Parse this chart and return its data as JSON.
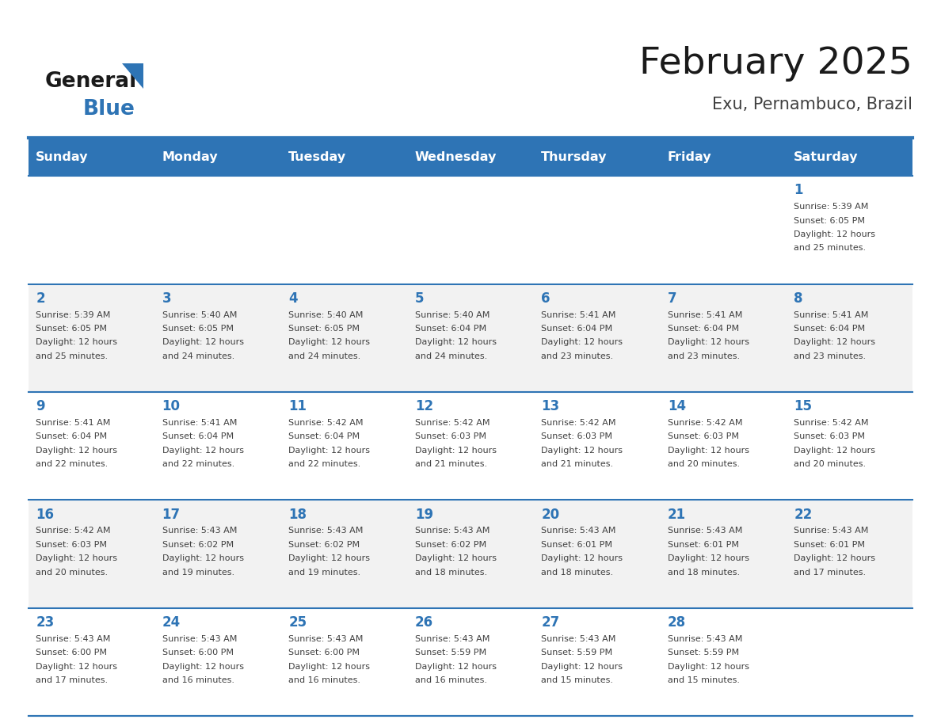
{
  "title": "February 2025",
  "subtitle": "Exu, Pernambuco, Brazil",
  "days_of_week": [
    "Sunday",
    "Monday",
    "Tuesday",
    "Wednesday",
    "Thursday",
    "Friday",
    "Saturday"
  ],
  "header_bg": "#2E74B5",
  "header_text_color": "#FFFFFF",
  "cell_bg_even": "#FFFFFF",
  "cell_bg_odd": "#F2F2F2",
  "day_number_color": "#2E74B5",
  "info_text_color": "#404040",
  "grid_line_color": "#2E74B5",
  "title_color": "#1a1a1a",
  "subtitle_color": "#404040",
  "logo_text1": "General",
  "logo_text2": "Blue",
  "logo_triangle_color": "#2E74B5",
  "calendar_data": [
    {
      "day": 1,
      "row": 0,
      "col": 6,
      "sunrise": "5:39 AM",
      "sunset": "6:05 PM",
      "daylight_hours": 12,
      "daylight_mins": 25
    },
    {
      "day": 2,
      "row": 1,
      "col": 0,
      "sunrise": "5:39 AM",
      "sunset": "6:05 PM",
      "daylight_hours": 12,
      "daylight_mins": 25
    },
    {
      "day": 3,
      "row": 1,
      "col": 1,
      "sunrise": "5:40 AM",
      "sunset": "6:05 PM",
      "daylight_hours": 12,
      "daylight_mins": 24
    },
    {
      "day": 4,
      "row": 1,
      "col": 2,
      "sunrise": "5:40 AM",
      "sunset": "6:05 PM",
      "daylight_hours": 12,
      "daylight_mins": 24
    },
    {
      "day": 5,
      "row": 1,
      "col": 3,
      "sunrise": "5:40 AM",
      "sunset": "6:04 PM",
      "daylight_hours": 12,
      "daylight_mins": 24
    },
    {
      "day": 6,
      "row": 1,
      "col": 4,
      "sunrise": "5:41 AM",
      "sunset": "6:04 PM",
      "daylight_hours": 12,
      "daylight_mins": 23
    },
    {
      "day": 7,
      "row": 1,
      "col": 5,
      "sunrise": "5:41 AM",
      "sunset": "6:04 PM",
      "daylight_hours": 12,
      "daylight_mins": 23
    },
    {
      "day": 8,
      "row": 1,
      "col": 6,
      "sunrise": "5:41 AM",
      "sunset": "6:04 PM",
      "daylight_hours": 12,
      "daylight_mins": 23
    },
    {
      "day": 9,
      "row": 2,
      "col": 0,
      "sunrise": "5:41 AM",
      "sunset": "6:04 PM",
      "daylight_hours": 12,
      "daylight_mins": 22
    },
    {
      "day": 10,
      "row": 2,
      "col": 1,
      "sunrise": "5:41 AM",
      "sunset": "6:04 PM",
      "daylight_hours": 12,
      "daylight_mins": 22
    },
    {
      "day": 11,
      "row": 2,
      "col": 2,
      "sunrise": "5:42 AM",
      "sunset": "6:04 PM",
      "daylight_hours": 12,
      "daylight_mins": 22
    },
    {
      "day": 12,
      "row": 2,
      "col": 3,
      "sunrise": "5:42 AM",
      "sunset": "6:03 PM",
      "daylight_hours": 12,
      "daylight_mins": 21
    },
    {
      "day": 13,
      "row": 2,
      "col": 4,
      "sunrise": "5:42 AM",
      "sunset": "6:03 PM",
      "daylight_hours": 12,
      "daylight_mins": 21
    },
    {
      "day": 14,
      "row": 2,
      "col": 5,
      "sunrise": "5:42 AM",
      "sunset": "6:03 PM",
      "daylight_hours": 12,
      "daylight_mins": 20
    },
    {
      "day": 15,
      "row": 2,
      "col": 6,
      "sunrise": "5:42 AM",
      "sunset": "6:03 PM",
      "daylight_hours": 12,
      "daylight_mins": 20
    },
    {
      "day": 16,
      "row": 3,
      "col": 0,
      "sunrise": "5:42 AM",
      "sunset": "6:03 PM",
      "daylight_hours": 12,
      "daylight_mins": 20
    },
    {
      "day": 17,
      "row": 3,
      "col": 1,
      "sunrise": "5:43 AM",
      "sunset": "6:02 PM",
      "daylight_hours": 12,
      "daylight_mins": 19
    },
    {
      "day": 18,
      "row": 3,
      "col": 2,
      "sunrise": "5:43 AM",
      "sunset": "6:02 PM",
      "daylight_hours": 12,
      "daylight_mins": 19
    },
    {
      "day": 19,
      "row": 3,
      "col": 3,
      "sunrise": "5:43 AM",
      "sunset": "6:02 PM",
      "daylight_hours": 12,
      "daylight_mins": 18
    },
    {
      "day": 20,
      "row": 3,
      "col": 4,
      "sunrise": "5:43 AM",
      "sunset": "6:01 PM",
      "daylight_hours": 12,
      "daylight_mins": 18
    },
    {
      "day": 21,
      "row": 3,
      "col": 5,
      "sunrise": "5:43 AM",
      "sunset": "6:01 PM",
      "daylight_hours": 12,
      "daylight_mins": 18
    },
    {
      "day": 22,
      "row": 3,
      "col": 6,
      "sunrise": "5:43 AM",
      "sunset": "6:01 PM",
      "daylight_hours": 12,
      "daylight_mins": 17
    },
    {
      "day": 23,
      "row": 4,
      "col": 0,
      "sunrise": "5:43 AM",
      "sunset": "6:00 PM",
      "daylight_hours": 12,
      "daylight_mins": 17
    },
    {
      "day": 24,
      "row": 4,
      "col": 1,
      "sunrise": "5:43 AM",
      "sunset": "6:00 PM",
      "daylight_hours": 12,
      "daylight_mins": 16
    },
    {
      "day": 25,
      "row": 4,
      "col": 2,
      "sunrise": "5:43 AM",
      "sunset": "6:00 PM",
      "daylight_hours": 12,
      "daylight_mins": 16
    },
    {
      "day": 26,
      "row": 4,
      "col": 3,
      "sunrise": "5:43 AM",
      "sunset": "5:59 PM",
      "daylight_hours": 12,
      "daylight_mins": 16
    },
    {
      "day": 27,
      "row": 4,
      "col": 4,
      "sunrise": "5:43 AM",
      "sunset": "5:59 PM",
      "daylight_hours": 12,
      "daylight_mins": 15
    },
    {
      "day": 28,
      "row": 4,
      "col": 5,
      "sunrise": "5:43 AM",
      "sunset": "5:59 PM",
      "daylight_hours": 12,
      "daylight_mins": 15
    }
  ],
  "num_rows": 5,
  "num_cols": 7
}
